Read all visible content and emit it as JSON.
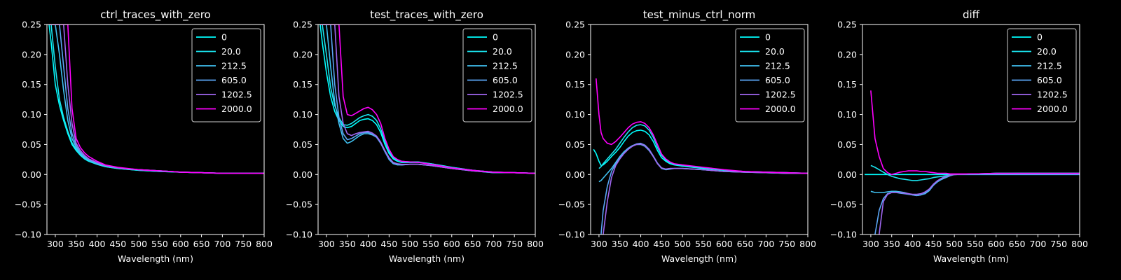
{
  "series_colors": [
    "#00ffff",
    "#1ae5f0",
    "#40c0f0",
    "#5aa5f5",
    "#a066f0",
    "#ff00ff"
  ],
  "chart_data": [
    {
      "type": "line",
      "title": "ctrl_traces_with_zero",
      "xlabel": "Wavelength (nm)",
      "ylabel": "",
      "xlim": [
        280,
        800
      ],
      "ylim": [
        -0.1,
        0.25
      ],
      "xticks": [
        "300",
        "350",
        "400",
        "450",
        "500",
        "550",
        "600",
        "650",
        "700",
        "750",
        "800"
      ],
      "yticks": [
        "0.25",
        "0.20",
        "0.15",
        "0.10",
        "0.05",
        "0.00",
        "−0.05",
        "−0.10"
      ],
      "legend_position": "top-right",
      "x": [
        285,
        290,
        300,
        310,
        320,
        330,
        340,
        350,
        360,
        370,
        380,
        400,
        420,
        450,
        500,
        550,
        600,
        650,
        700,
        750,
        800
      ],
      "series": [
        {
          "name": "0",
          "values": [
            0.25,
            0.22,
            0.15,
            0.115,
            0.09,
            0.068,
            0.05,
            0.04,
            0.032,
            0.026,
            0.022,
            0.017,
            0.013,
            0.01,
            0.007,
            0.005,
            0.004,
            0.003,
            0.002,
            0.002,
            0.002
          ]
        },
        {
          "name": "20.0",
          "values": [
            0.25,
            0.25,
            0.18,
            0.125,
            0.095,
            0.072,
            0.053,
            0.042,
            0.033,
            0.027,
            0.023,
            0.017,
            0.013,
            0.01,
            0.007,
            0.005,
            0.004,
            0.003,
            0.002,
            0.002,
            0.002
          ]
        },
        {
          "name": "212.5",
          "values": [
            0.25,
            0.25,
            0.25,
            0.2,
            0.14,
            0.09,
            0.06,
            0.045,
            0.035,
            0.028,
            0.024,
            0.018,
            0.014,
            0.011,
            0.008,
            0.006,
            0.004,
            0.003,
            0.002,
            0.002,
            0.002
          ]
        },
        {
          "name": "605.0",
          "values": [
            0.25,
            0.25,
            0.25,
            0.25,
            0.18,
            0.11,
            0.068,
            0.048,
            0.037,
            0.03,
            0.025,
            0.019,
            0.015,
            0.011,
            0.008,
            0.006,
            0.004,
            0.003,
            0.002,
            0.002,
            0.002
          ]
        },
        {
          "name": "1202.5",
          "values": [
            0.25,
            0.25,
            0.25,
            0.25,
            0.25,
            0.15,
            0.085,
            0.052,
            0.04,
            0.032,
            0.026,
            0.02,
            0.015,
            0.011,
            0.008,
            0.006,
            0.004,
            0.003,
            0.002,
            0.002,
            0.002
          ]
        },
        {
          "name": "2000.0",
          "values": [
            0.25,
            0.25,
            0.25,
            0.25,
            0.25,
            0.25,
            0.11,
            0.06,
            0.045,
            0.036,
            0.03,
            0.022,
            0.016,
            0.012,
            0.008,
            0.006,
            0.004,
            0.003,
            0.002,
            0.002,
            0.002
          ]
        }
      ]
    },
    {
      "type": "line",
      "title": "test_traces_with_zero",
      "xlabel": "Wavelength (nm)",
      "ylabel": "",
      "xlim": [
        280,
        800
      ],
      "ylim": [
        -0.1,
        0.25
      ],
      "xticks": [
        "300",
        "350",
        "400",
        "450",
        "500",
        "550",
        "600",
        "650",
        "700",
        "750",
        "800"
      ],
      "yticks": [
        "0.25",
        "0.20",
        "0.15",
        "0.10",
        "0.05",
        "0.00",
        "−0.05",
        "−0.10"
      ],
      "legend_position": "top-right",
      "x": [
        285,
        290,
        300,
        310,
        320,
        330,
        340,
        350,
        360,
        370,
        380,
        390,
        400,
        410,
        420,
        430,
        440,
        450,
        460,
        470,
        480,
        500,
        520,
        550,
        600,
        650,
        700,
        750,
        800
      ],
      "series": [
        {
          "name": "0",
          "values": [
            0.25,
            0.22,
            0.17,
            0.13,
            0.105,
            0.09,
            0.08,
            0.078,
            0.08,
            0.085,
            0.09,
            0.092,
            0.093,
            0.09,
            0.083,
            0.07,
            0.05,
            0.035,
            0.026,
            0.022,
            0.02,
            0.02,
            0.02,
            0.018,
            0.012,
            0.007,
            0.004,
            0.003,
            0.002
          ]
        },
        {
          "name": "20.0",
          "values": [
            0.25,
            0.25,
            0.2,
            0.145,
            0.115,
            0.095,
            0.083,
            0.082,
            0.085,
            0.09,
            0.095,
            0.098,
            0.1,
            0.097,
            0.09,
            0.076,
            0.055,
            0.038,
            0.028,
            0.024,
            0.022,
            0.021,
            0.021,
            0.018,
            0.012,
            0.007,
            0.004,
            0.003,
            0.002
          ]
        },
        {
          "name": "212.5",
          "values": [
            0.25,
            0.25,
            0.25,
            0.18,
            0.12,
            0.085,
            0.06,
            0.052,
            0.055,
            0.06,
            0.065,
            0.068,
            0.068,
            0.066,
            0.062,
            0.052,
            0.038,
            0.025,
            0.018,
            0.016,
            0.016,
            0.017,
            0.017,
            0.015,
            0.01,
            0.006,
            0.003,
            0.003,
            0.002
          ]
        },
        {
          "name": "605.0",
          "values": [
            0.25,
            0.25,
            0.25,
            0.25,
            0.15,
            0.095,
            0.068,
            0.058,
            0.06,
            0.064,
            0.068,
            0.07,
            0.07,
            0.067,
            0.062,
            0.052,
            0.038,
            0.026,
            0.019,
            0.017,
            0.016,
            0.017,
            0.017,
            0.015,
            0.01,
            0.006,
            0.003,
            0.003,
            0.002
          ]
        },
        {
          "name": "1202.5",
          "values": [
            0.25,
            0.25,
            0.25,
            0.25,
            0.25,
            0.13,
            0.085,
            0.068,
            0.065,
            0.068,
            0.07,
            0.071,
            0.072,
            0.069,
            0.064,
            0.054,
            0.04,
            0.028,
            0.02,
            0.018,
            0.017,
            0.017,
            0.017,
            0.015,
            0.01,
            0.006,
            0.004,
            0.003,
            0.002
          ]
        },
        {
          "name": "2000.0",
          "values": [
            0.25,
            0.25,
            0.25,
            0.25,
            0.25,
            0.25,
            0.13,
            0.1,
            0.098,
            0.102,
            0.106,
            0.11,
            0.112,
            0.108,
            0.1,
            0.085,
            0.06,
            0.042,
            0.03,
            0.025,
            0.022,
            0.021,
            0.02,
            0.017,
            0.011,
            0.007,
            0.004,
            0.003,
            0.002
          ]
        }
      ]
    },
    {
      "type": "line",
      "title": "test_minus_ctrl_norm",
      "xlabel": "Wavelength (nm)",
      "ylabel": "",
      "xlim": [
        280,
        800
      ],
      "ylim": [
        -0.1,
        0.25
      ],
      "xticks": [
        "300",
        "350",
        "400",
        "450",
        "500",
        "550",
        "600",
        "650",
        "700",
        "750",
        "800"
      ],
      "yticks": [
        "0.25",
        "0.20",
        "0.15",
        "0.10",
        "0.05",
        "0.00",
        "−0.05",
        "−0.10"
      ],
      "legend_position": "top-right",
      "x": [
        287,
        293,
        300,
        305,
        310,
        320,
        330,
        340,
        350,
        360,
        370,
        380,
        390,
        400,
        410,
        420,
        430,
        440,
        450,
        460,
        470,
        480,
        500,
        550,
        600,
        650,
        700,
        750,
        800
      ],
      "series": [
        {
          "name": "0",
          "values": [
            0.042,
            0.035,
            0.022,
            0.015,
            0.016,
            0.022,
            0.03,
            0.037,
            0.045,
            0.055,
            0.064,
            0.07,
            0.073,
            0.074,
            0.072,
            0.066,
            0.055,
            0.04,
            0.028,
            0.022,
            0.018,
            0.016,
            0.014,
            0.01,
            0.007,
            0.005,
            0.004,
            0.003,
            0.002
          ]
        },
        {
          "name": "20.0",
          "values": [
            null,
            null,
            0.01,
            0.013,
            0.018,
            0.026,
            0.034,
            0.042,
            0.052,
            0.062,
            0.071,
            0.078,
            0.082,
            0.083,
            0.081,
            0.074,
            0.062,
            0.045,
            0.032,
            0.024,
            0.019,
            0.017,
            0.015,
            0.011,
            0.007,
            0.005,
            0.004,
            0.003,
            0.002
          ]
        },
        {
          "name": "212.5",
          "values": [
            null,
            null,
            -0.012,
            -0.01,
            -0.006,
            0.002,
            0.01,
            0.02,
            0.03,
            0.038,
            0.044,
            0.048,
            0.05,
            0.05,
            0.047,
            0.04,
            0.03,
            0.018,
            0.01,
            0.008,
            0.009,
            0.01,
            0.01,
            0.008,
            0.005,
            0.004,
            0.003,
            0.002,
            0.002
          ]
        },
        {
          "name": "605.0",
          "values": [
            null,
            null,
            null,
            -0.1,
            -0.06,
            -0.02,
            0.005,
            0.018,
            0.028,
            0.036,
            0.043,
            0.048,
            0.051,
            0.052,
            0.049,
            0.042,
            0.031,
            0.019,
            0.011,
            0.009,
            0.01,
            0.01,
            0.01,
            0.008,
            0.005,
            0.004,
            0.003,
            0.002,
            0.002
          ]
        },
        {
          "name": "1202.5",
          "values": [
            null,
            null,
            null,
            null,
            -0.1,
            -0.045,
            -0.005,
            0.015,
            0.026,
            0.035,
            0.042,
            0.047,
            0.05,
            0.051,
            0.048,
            0.041,
            0.03,
            0.018,
            0.011,
            0.009,
            0.01,
            0.01,
            0.01,
            0.008,
            0.005,
            0.004,
            0.003,
            0.002,
            0.002
          ]
        },
        {
          "name": "2000.0",
          "values": [
            null,
            0.16,
            0.1,
            0.07,
            0.06,
            0.052,
            0.05,
            0.055,
            0.062,
            0.07,
            0.078,
            0.084,
            0.087,
            0.088,
            0.085,
            0.078,
            0.066,
            0.05,
            0.034,
            0.026,
            0.021,
            0.018,
            0.016,
            0.012,
            0.008,
            0.005,
            0.004,
            0.003,
            0.002
          ]
        }
      ]
    },
    {
      "type": "line",
      "title": "diff",
      "xlabel": "Wavelength (nm)",
      "ylabel": "",
      "xlim": [
        280,
        800
      ],
      "ylim": [
        -0.1,
        0.25
      ],
      "xticks": [
        "300",
        "350",
        "400",
        "450",
        "500",
        "550",
        "600",
        "650",
        "700",
        "750",
        "800"
      ],
      "yticks": [
        "0.25",
        "0.20",
        "0.15",
        "0.10",
        "0.05",
        "0.00",
        "−0.05",
        "−0.10"
      ],
      "legend_position": "top-right",
      "x": [
        285,
        300,
        310,
        320,
        330,
        340,
        350,
        360,
        370,
        380,
        390,
        400,
        410,
        420,
        430,
        440,
        450,
        460,
        470,
        480,
        490,
        500,
        550,
        600,
        650,
        700,
        750,
        800
      ],
      "series": [
        {
          "name": "0",
          "values": [
            0.0,
            0.0,
            0.0,
            0.0,
            0.0,
            0.0,
            0.0,
            0.0,
            0.0,
            0.0,
            0.0,
            0.0,
            0.0,
            0.0,
            0.0,
            0.0,
            0.0,
            0.0,
            0.0,
            0.0,
            0.0,
            0.0,
            0.0,
            0.0,
            0.0,
            0.0,
            0.0,
            0.0
          ]
        },
        {
          "name": "20.0",
          "values": [
            null,
            0.015,
            0.012,
            0.008,
            0.004,
            0.0,
            -0.003,
            -0.005,
            -0.007,
            -0.008,
            -0.009,
            -0.01,
            -0.01,
            -0.009,
            -0.008,
            -0.007,
            -0.005,
            -0.004,
            -0.003,
            -0.002,
            -0.001,
            0.0,
            0.001,
            0.001,
            0.002,
            0.002,
            0.002,
            0.002
          ]
        },
        {
          "name": "212.5",
          "values": [
            null,
            -0.028,
            -0.03,
            -0.03,
            -0.03,
            -0.029,
            -0.028,
            -0.028,
            -0.029,
            -0.03,
            -0.032,
            -0.034,
            -0.035,
            -0.034,
            -0.032,
            -0.027,
            -0.018,
            -0.012,
            -0.008,
            -0.005,
            -0.002,
            0.0,
            0.001,
            0.002,
            0.002,
            0.002,
            0.002,
            0.002
          ]
        },
        {
          "name": "605.0",
          "values": [
            null,
            null,
            -0.1,
            -0.06,
            -0.04,
            -0.032,
            -0.03,
            -0.03,
            -0.031,
            -0.032,
            -0.033,
            -0.034,
            -0.035,
            -0.034,
            -0.031,
            -0.026,
            -0.018,
            -0.011,
            -0.007,
            -0.004,
            -0.001,
            0.0,
            0.001,
            0.002,
            0.002,
            0.002,
            0.002,
            0.002
          ]
        },
        {
          "name": "1202.5",
          "values": [
            null,
            null,
            null,
            -0.1,
            -0.045,
            -0.033,
            -0.03,
            -0.03,
            -0.03,
            -0.031,
            -0.032,
            -0.033,
            -0.033,
            -0.032,
            -0.029,
            -0.024,
            -0.016,
            -0.01,
            -0.006,
            -0.003,
            -0.001,
            0.0,
            0.001,
            0.002,
            0.002,
            0.002,
            0.002,
            0.002
          ]
        },
        {
          "name": "2000.0",
          "values": [
            null,
            0.14,
            0.06,
            0.03,
            0.01,
            0.003,
            0.0,
            0.002,
            0.004,
            0.005,
            0.006,
            0.006,
            0.006,
            0.005,
            0.005,
            0.004,
            0.003,
            0.002,
            0.002,
            0.002,
            0.001,
            0.001,
            0.001,
            0.001,
            0.001,
            0.001,
            0.001,
            0.001
          ]
        }
      ]
    }
  ]
}
